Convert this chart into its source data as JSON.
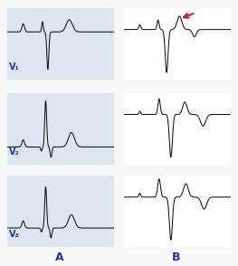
{
  "bg_color": "#f8f8f8",
  "bg_color_left": "#dce6f0",
  "bg_color_right": "#ffffff",
  "label_A": "A",
  "label_B": "B",
  "label_v1": "V₁",
  "label_v2": "V₂",
  "label_v3": "V₃",
  "label_color": "#2233bb",
  "arrow_color": "#cc1133",
  "line_color": "#111111",
  "line_width": 0.75,
  "figsize": [
    2.63,
    2.94
  ],
  "dpi": 100
}
